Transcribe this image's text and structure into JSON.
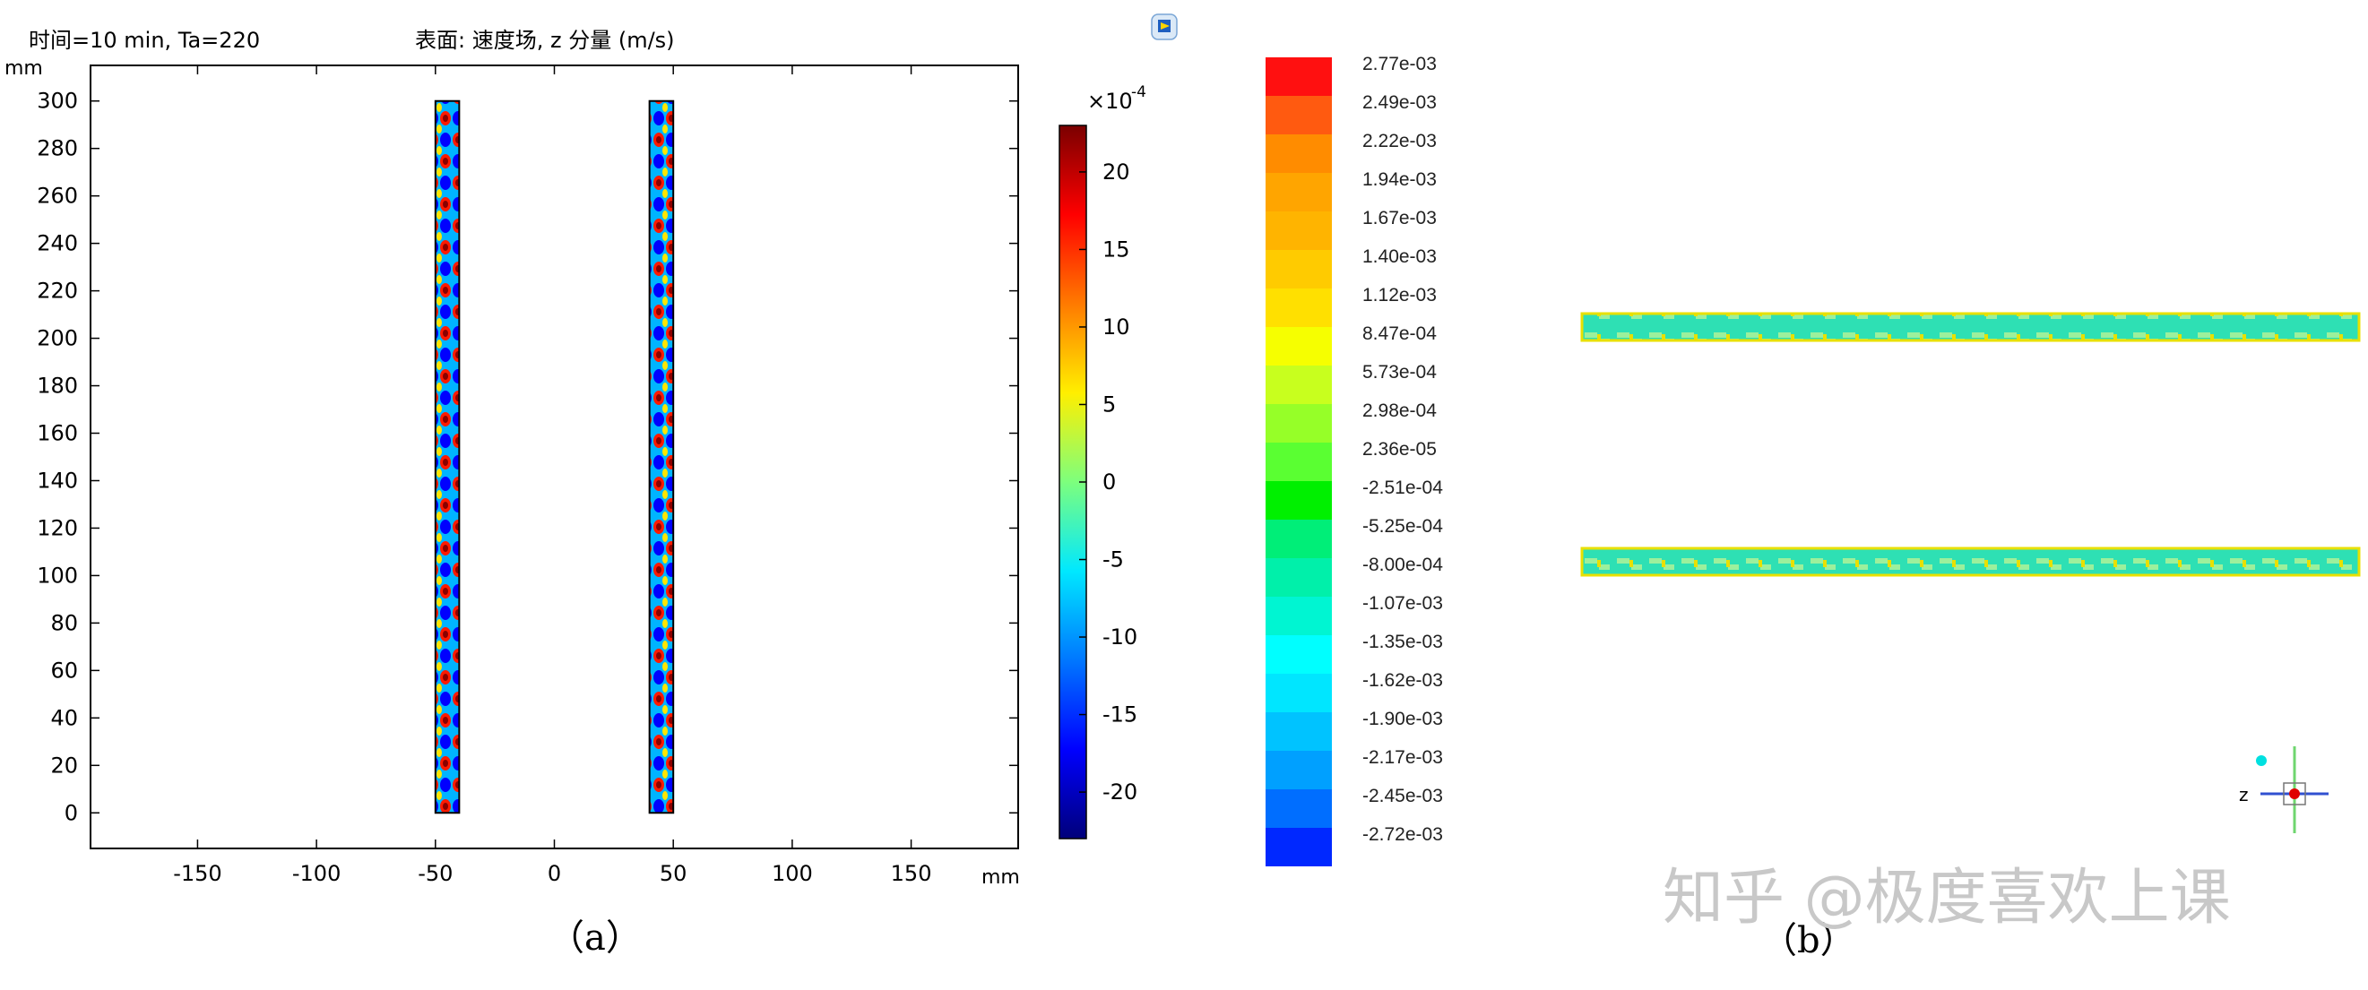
{
  "panel_a": {
    "header_left": "时间=10 min, Ta=220",
    "header_center": "表面: 速度场, z 分量 (m/s)",
    "y_unit": "mm",
    "x_unit": "mm",
    "caption": "（a）",
    "colorbar_multiplier": "×10",
    "colorbar_exponent": "-4"
  },
  "panel_b": {
    "caption": "（b）",
    "axis_label": "z"
  },
  "watermark": "知乎 @极度喜欢上课",
  "colors": {
    "rainbow": [
      "#00007a",
      "#0000ff",
      "#0077ff",
      "#00e8ff",
      "#7dff7d",
      "#ffef00",
      "#ff7a00",
      "#ff0000",
      "#7a0000"
    ],
    "strip_b_fill": "#20e0b0",
    "strip_b_edge": "#e8e000"
  },
  "chart_data": [
    {
      "type": "heatmap",
      "title": "表面: 速度场, z 分量 (m/s)",
      "xlabel": "mm",
      "ylabel": "mm",
      "xlim": [
        -195,
        195
      ],
      "ylim": [
        -15,
        315
      ],
      "x_ticks": [
        -150,
        -100,
        -50,
        0,
        50,
        100,
        150
      ],
      "y_ticks": [
        0,
        20,
        40,
        60,
        80,
        100,
        120,
        140,
        160,
        180,
        200,
        220,
        240,
        260,
        280,
        300
      ],
      "regions": [
        {
          "x": [
            -50,
            -40
          ],
          "y": [
            0,
            300
          ]
        },
        {
          "x": [
            40,
            50
          ],
          "y": [
            0,
            300
          ]
        }
      ],
      "colorbar": {
        "range": [
          -23,
          23
        ],
        "ticks": [
          20,
          15,
          10,
          5,
          0,
          -5,
          -10,
          -15,
          -20
        ],
        "multiplier_label": "×10",
        "exponent": "-4"
      }
    },
    {
      "type": "heatmap",
      "legend_levels": [
        {
          "label": "2.77e-03",
          "color": "#ff1010"
        },
        {
          "label": "2.49e-03",
          "color": "#ff5a10"
        },
        {
          "label": "2.22e-03",
          "color": "#ff8c00"
        },
        {
          "label": "1.94e-03",
          "color": "#ffa500"
        },
        {
          "label": "1.67e-03",
          "color": "#ffb400"
        },
        {
          "label": "1.40e-03",
          "color": "#ffcb00"
        },
        {
          "label": "1.12e-03",
          "color": "#ffe000"
        },
        {
          "label": "8.47e-04",
          "color": "#f6ff00"
        },
        {
          "label": "5.73e-04",
          "color": "#c8ff1e"
        },
        {
          "label": "2.98e-04",
          "color": "#96ff28"
        },
        {
          "label": "2.36e-05",
          "color": "#5aff32"
        },
        {
          "label": "-2.51e-04",
          "color": "#00f000"
        },
        {
          "label": "-5.25e-04",
          "color": "#00ee78"
        },
        {
          "label": "-8.00e-04",
          "color": "#00f0aa"
        },
        {
          "label": "-1.07e-03",
          "color": "#00f5d2"
        },
        {
          "label": "-1.35e-03",
          "color": "#00ffff"
        },
        {
          "label": "-1.62e-03",
          "color": "#00e6ff"
        },
        {
          "label": "-1.90e-03",
          "color": "#00c3ff"
        },
        {
          "label": "-2.17e-03",
          "color": "#00a0ff"
        },
        {
          "label": "-2.45e-03",
          "color": "#006eff"
        },
        {
          "label": "-2.72e-03",
          "color": "#0028ff"
        }
      ]
    }
  ]
}
